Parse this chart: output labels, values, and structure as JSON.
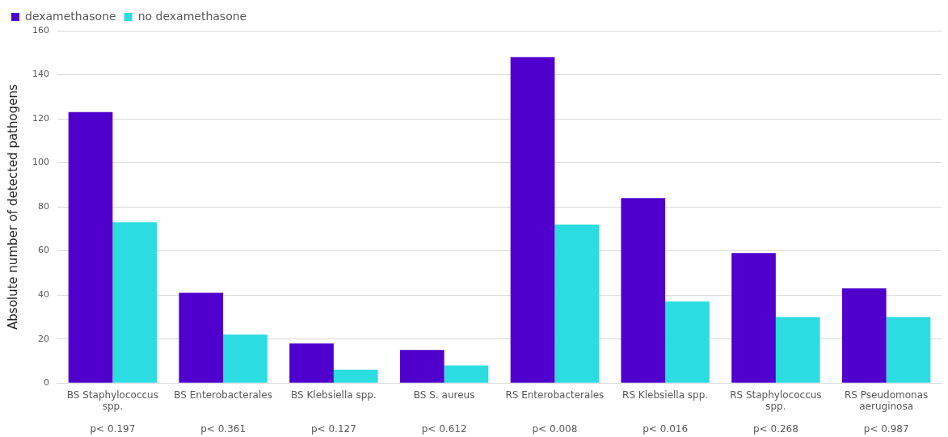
{
  "chart_data": {
    "type": "bar",
    "ylabel": "Absolute number of detected pathogens",
    "categories": [
      "BS Staphylococcus spp.",
      "BS Enterobacterales",
      "BS Klebsiella spp.",
      "BS S. aureus",
      "RS Enterobacterales",
      "RS Klebsiella spp.",
      "RS Staphylococcus spp.",
      "RS Pseudomonas aeruginosa"
    ],
    "series": [
      {
        "name": "dexamethasone",
        "color": "#4f00cc",
        "values": [
          123,
          41,
          18,
          15,
          148,
          84,
          59,
          43
        ]
      },
      {
        "name": "no dexamethasone",
        "color": "#2bdce0",
        "values": [
          73,
          22,
          6,
          8,
          72,
          37,
          30,
          30
        ]
      }
    ],
    "ylim": [
      0,
      160
    ],
    "yticks": [
      0,
      20,
      40,
      60,
      80,
      100,
      120,
      140,
      160
    ],
    "grid": "y",
    "legend": "top left",
    "annotations": [
      "p< 0.197",
      "p< 0.361",
      "p< 0.127",
      "p< 0.612",
      "p< 0.008",
      "p< 0.016",
      "p< 0.268",
      "p< 0.987"
    ]
  }
}
